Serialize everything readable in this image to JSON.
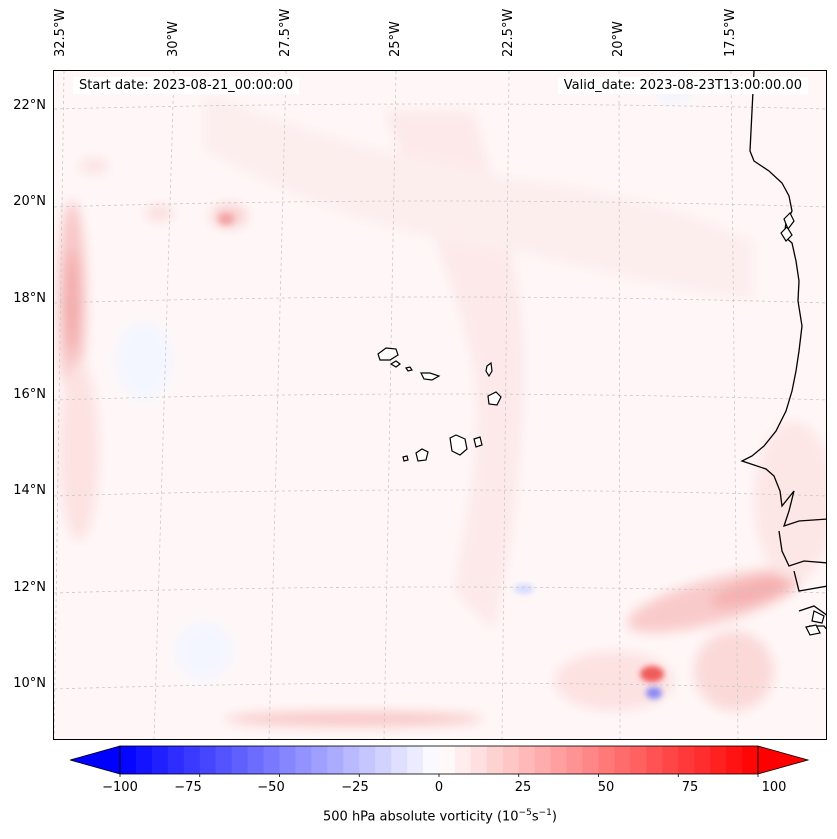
{
  "map": {
    "start_label": "Start date: 2023-08-21_00:00:00",
    "valid_label": "Valid_date: 2023-08-23T13:00:00.00",
    "lon_labels": [
      "32.5°W",
      "30°W",
      "27.5°W",
      "25°W",
      "22.5°W",
      "20°W",
      "17.5°W"
    ],
    "lat_labels": [
      "22°N",
      "20°N",
      "18°N",
      "16°N",
      "14°N",
      "12°N",
      "10°N"
    ],
    "coast_color": "#000000",
    "grid_color": "#c8c8c8"
  },
  "colorbar": {
    "ticks": [
      "−100",
      "−75",
      "−50",
      "−25",
      "0",
      "25",
      "50",
      "75",
      "100"
    ],
    "label_main": "500 hPa absolute vorticity (10",
    "label_exp1": "−5",
    "label_mid": "s",
    "label_exp2": "−1",
    "label_end": ")",
    "min": -100,
    "max": 100,
    "step": 5,
    "min_color": "#0000ff",
    "mid_color": "#ffffff",
    "max_color": "#ff0000"
  }
}
